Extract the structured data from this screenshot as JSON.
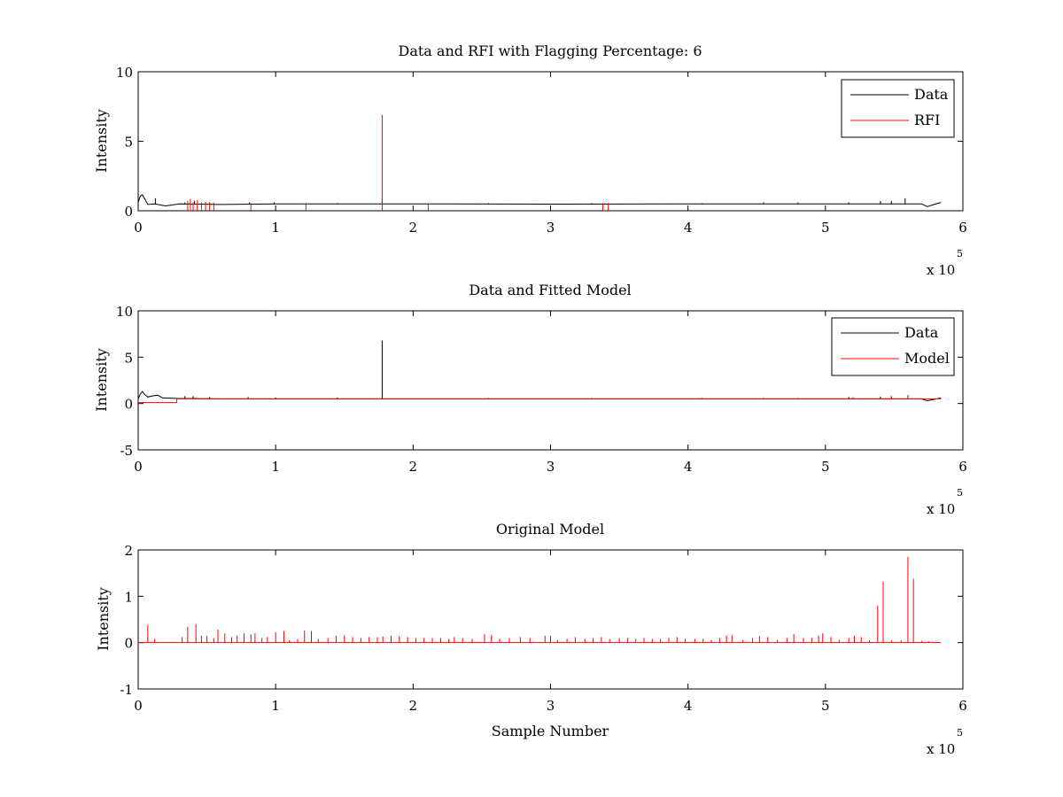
{
  "chart_data": [
    {
      "type": "line",
      "title": "Data and RFI with Flagging Percentage: 6",
      "xlabel": "",
      "ylabel": "Intensity",
      "xlim": [
        0,
        600000
      ],
      "ylim": [
        0,
        10
      ],
      "xticks": [
        "0",
        "1",
        "2",
        "3",
        "4",
        "5",
        "6"
      ],
      "yticks": [
        "0",
        "5",
        "10"
      ],
      "x_multiplier": {
        "base": "x 10",
        "exponent": "5"
      },
      "legend_position": "top-right",
      "grid": false,
      "series": [
        {
          "name": "Data",
          "color": "#000000",
          "baseline": 0.5,
          "points": [
            [
              0,
              0.6
            ],
            [
              1500,
              1.05
            ],
            [
              3000,
              1.15
            ],
            [
              4500,
              0.9
            ],
            [
              7000,
              0.45
            ],
            [
              12000,
              0.5
            ],
            [
              20000,
              0.35
            ],
            [
              30000,
              0.5
            ],
            [
              60000,
              0.45
            ],
            [
              100000,
              0.5
            ],
            [
              200000,
              0.5
            ],
            [
              300000,
              0.48
            ],
            [
              400000,
              0.5
            ],
            [
              500000,
              0.5
            ],
            [
              570000,
              0.5
            ],
            [
              574000,
              0.3
            ],
            [
              579000,
              0.45
            ],
            [
              584000,
              0.6
            ]
          ],
          "spikes": [
            [
              12500,
              0.9
            ],
            [
              34000,
              0.6
            ],
            [
              41000,
              0.7
            ],
            [
              52000,
              0.6
            ],
            [
              81000,
              0.6
            ],
            [
              99000,
              0.6
            ],
            [
              145000,
              0.55
            ],
            [
              177500,
              0.9
            ],
            [
              255000,
              0.55
            ],
            [
              330000,
              0.55
            ],
            [
              410000,
              0.55
            ],
            [
              455000,
              0.6
            ],
            [
              480000,
              0.6
            ],
            [
              517000,
              0.6
            ],
            [
              540000,
              0.7
            ],
            [
              548000,
              0.7
            ],
            [
              558000,
              0.9
            ]
          ]
        },
        {
          "name": "RFI",
          "color": "#ff0000",
          "spikes": [
            [
              36000,
              0.7
            ],
            [
              38000,
              0.85
            ],
            [
              40000,
              0.6
            ],
            [
              43000,
              0.75
            ],
            [
              46000,
              0.6
            ],
            [
              49000,
              0.65
            ],
            [
              52000,
              0.55
            ],
            [
              55000,
              0.6
            ],
            [
              82000,
              0.55
            ],
            [
              122000,
              0.55
            ],
            [
              177500,
              6.9
            ],
            [
              211000,
              0.55
            ],
            [
              338000,
              0.55
            ],
            [
              342000,
              0.55
            ]
          ]
        }
      ]
    },
    {
      "type": "line",
      "title": "Data and Fitted Model",
      "xlabel": "",
      "ylabel": "Intensity",
      "xlim": [
        0,
        600000
      ],
      "ylim": [
        -5,
        10
      ],
      "xticks": [
        "0",
        "1",
        "2",
        "3",
        "4",
        "5",
        "6"
      ],
      "yticks": [
        "-5",
        "0",
        "5",
        "10"
      ],
      "x_multiplier": {
        "base": "x 10",
        "exponent": "5"
      },
      "legend_position": "top-right",
      "grid": false,
      "series": [
        {
          "name": "Data",
          "color": "#000000",
          "baseline": 0.5,
          "points": [
            [
              0,
              0.5
            ],
            [
              1500,
              1.0
            ],
            [
              3000,
              1.3
            ],
            [
              4500,
              1.0
            ],
            [
              7000,
              0.7
            ],
            [
              10000,
              0.8
            ],
            [
              14000,
              0.9
            ],
            [
              18000,
              0.6
            ],
            [
              28000,
              0.55
            ],
            [
              60000,
              0.5
            ],
            [
              200000,
              0.5
            ],
            [
              400000,
              0.5
            ],
            [
              570000,
              0.5
            ],
            [
              574000,
              0.3
            ],
            [
              579000,
              0.45
            ],
            [
              584000,
              0.6
            ]
          ],
          "spikes": [
            [
              34000,
              0.8
            ],
            [
              40000,
              0.8
            ],
            [
              52000,
              0.7
            ],
            [
              80000,
              0.7
            ],
            [
              100000,
              0.65
            ],
            [
              145000,
              0.65
            ],
            [
              177500,
              6.8
            ],
            [
              255000,
              0.6
            ],
            [
              330000,
              0.6
            ],
            [
              410000,
              0.6
            ],
            [
              455000,
              0.6
            ],
            [
              480000,
              0.6
            ],
            [
              517000,
              0.7
            ],
            [
              540000,
              0.75
            ],
            [
              548000,
              0.75
            ],
            [
              560000,
              0.9
            ]
          ]
        },
        {
          "name": "Model",
          "color": "#ff0000",
          "baseline": 0.5,
          "points": [
            [
              0,
              0.1
            ],
            [
              28000,
              0.1
            ],
            [
              28000,
              0.5
            ],
            [
              584000,
              0.5
            ]
          ],
          "spikes": [
            [
              35000,
              0.6
            ],
            [
              42000,
              0.65
            ],
            [
              520000,
              0.7
            ],
            [
              548000,
              0.8
            ],
            [
              560000,
              0.85
            ]
          ]
        }
      ]
    },
    {
      "type": "line",
      "title": "Original Model",
      "xlabel": "Sample Number",
      "ylabel": "Intensity",
      "xlim": [
        0,
        600000
      ],
      "ylim": [
        -1,
        2
      ],
      "xticks": [
        "0",
        "1",
        "2",
        "3",
        "4",
        "5",
        "6"
      ],
      "yticks": [
        "-1",
        "0",
        "1",
        "2"
      ],
      "x_multiplier": {
        "base": "x 10",
        "exponent": "5"
      },
      "legend_position": "none",
      "grid": false,
      "series": [
        {
          "color": "#ff0000",
          "baseline": 0,
          "x_end": 584000,
          "spikes": [
            [
              7000,
              0.38
            ],
            [
              12000,
              0.08
            ],
            [
              32000,
              0.12
            ],
            [
              36000,
              0.34
            ],
            [
              42000,
              0.4
            ],
            [
              46000,
              0.15
            ],
            [
              50000,
              0.14
            ],
            [
              55000,
              0.1
            ],
            [
              58000,
              0.28
            ],
            [
              63000,
              0.2
            ],
            [
              68000,
              0.12
            ],
            [
              72000,
              0.15
            ],
            [
              77000,
              0.2
            ],
            [
              82000,
              0.18
            ],
            [
              85000,
              0.2
            ],
            [
              90000,
              0.1
            ],
            [
              94000,
              0.12
            ],
            [
              100000,
              0.22
            ],
            [
              106000,
              0.25
            ],
            [
              110000,
              0.05
            ],
            [
              116000,
              0.08
            ],
            [
              121000,
              0.26
            ],
            [
              126000,
              0.25
            ],
            [
              131000,
              0.08
            ],
            [
              138000,
              0.1
            ],
            [
              144000,
              0.15
            ],
            [
              150000,
              0.16
            ],
            [
              156000,
              0.12
            ],
            [
              162000,
              0.1
            ],
            [
              168000,
              0.12
            ],
            [
              174000,
              0.12
            ],
            [
              178000,
              0.13
            ],
            [
              184000,
              0.15
            ],
            [
              190000,
              0.14
            ],
            [
              196000,
              0.12
            ],
            [
              202000,
              0.1
            ],
            [
              208000,
              0.1
            ],
            [
              214000,
              0.1
            ],
            [
              220000,
              0.1
            ],
            [
              226000,
              0.08
            ],
            [
              230000,
              0.12
            ],
            [
              236000,
              0.1
            ],
            [
              243000,
              0.08
            ],
            [
              252000,
              0.18
            ],
            [
              257000,
              0.16
            ],
            [
              263000,
              0.08
            ],
            [
              270000,
              0.1
            ],
            [
              278000,
              0.12
            ],
            [
              285000,
              0.1
            ],
            [
              296000,
              0.15
            ],
            [
              300000,
              0.15
            ],
            [
              305000,
              0.06
            ],
            [
              312000,
              0.08
            ],
            [
              318000,
              0.12
            ],
            [
              325000,
              0.08
            ],
            [
              331000,
              0.1
            ],
            [
              337000,
              0.12
            ],
            [
              343000,
              0.08
            ],
            [
              350000,
              0.1
            ],
            [
              356000,
              0.1
            ],
            [
              362000,
              0.08
            ],
            [
              368000,
              0.1
            ],
            [
              374000,
              0.08
            ],
            [
              380000,
              0.08
            ],
            [
              386000,
              0.1
            ],
            [
              392000,
              0.12
            ],
            [
              398000,
              0.08
            ],
            [
              405000,
              0.08
            ],
            [
              411000,
              0.08
            ],
            [
              417000,
              0.06
            ],
            [
              423000,
              0.1
            ],
            [
              428000,
              0.15
            ],
            [
              432000,
              0.16
            ],
            [
              440000,
              0.06
            ],
            [
              447000,
              0.1
            ],
            [
              452000,
              0.14
            ],
            [
              458000,
              0.12
            ],
            [
              465000,
              0.06
            ],
            [
              472000,
              0.1
            ],
            [
              477000,
              0.18
            ],
            [
              484000,
              0.1
            ],
            [
              490000,
              0.1
            ],
            [
              495000,
              0.15
            ],
            [
              498000,
              0.2
            ],
            [
              504000,
              0.12
            ],
            [
              510000,
              0.06
            ],
            [
              517000,
              0.1
            ],
            [
              521000,
              0.15
            ],
            [
              526000,
              0.12
            ],
            [
              532000,
              0.05
            ],
            [
              538000,
              0.8
            ],
            [
              542000,
              1.32
            ],
            [
              548000,
              0.05
            ],
            [
              555000,
              0.05
            ],
            [
              560000,
              1.85
            ],
            [
              564000,
              1.38
            ],
            [
              570000,
              0.04
            ],
            [
              575000,
              0.03
            ]
          ]
        }
      ]
    }
  ]
}
